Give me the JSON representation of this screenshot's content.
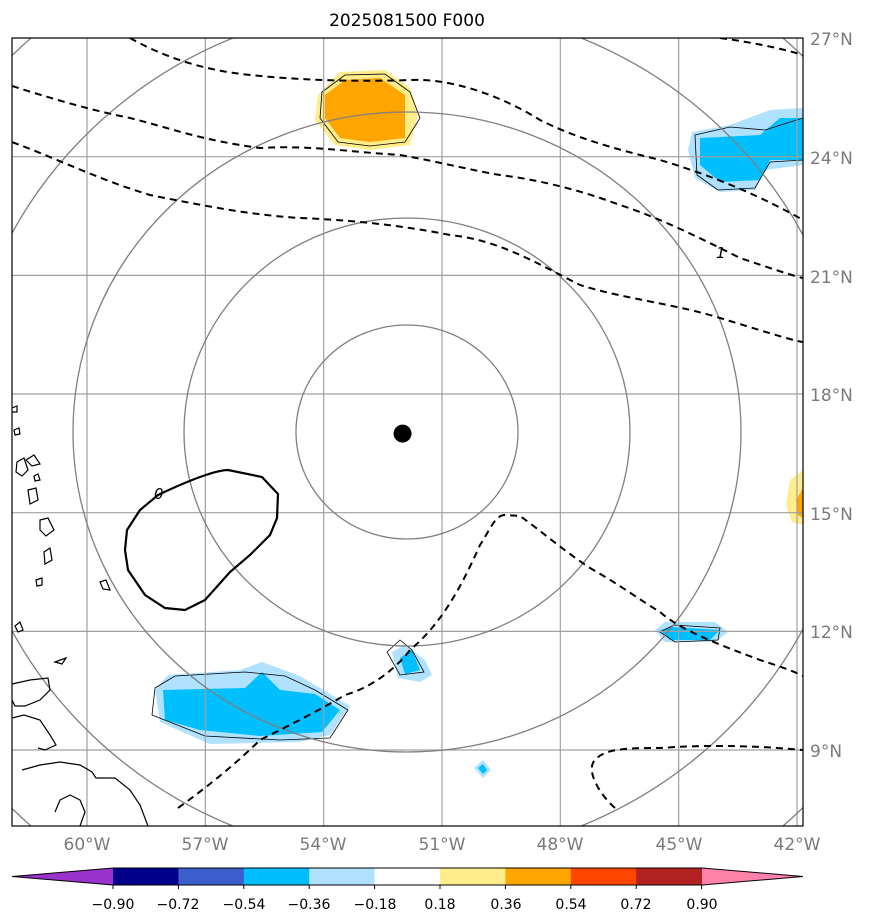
{
  "title": "2025081500 F000",
  "lon_labels": [
    "60°W",
    "57°W",
    "54°W",
    "51°W",
    "48°W",
    "45°W",
    "42°W"
  ],
  "lat_labels": [
    "27°N",
    "24°N",
    "21°N",
    "18°N",
    "15°N",
    "12°N",
    "9°N"
  ],
  "contour_labels": {
    "dashed": "1",
    "solid": "0"
  },
  "colorbar": {
    "ticks": [
      "−0.90",
      "−0.72",
      "−0.54",
      "−0.36",
      "−0.18",
      "0.18",
      "0.36",
      "0.54",
      "0.72",
      "0.90"
    ],
    "colors": [
      "#9a32cd",
      "#00008b",
      "#3a5fcd",
      "#00bfff",
      "#b0e2ff",
      "#ffffff",
      "#ffec8b",
      "#ffa500",
      "#ff4500",
      "#b22222",
      "#ff82ab"
    ]
  },
  "storm_center": {
    "lon": -52.0,
    "lat": 17.0
  },
  "colors": {
    "grid": "#a0a0a0",
    "rings": "#7f7f7f",
    "light_blue": "#b0e2ff",
    "deep_sky_blue": "#00bfff",
    "light_yellow": "#ffec8b",
    "orange": "#ffa500"
  }
}
